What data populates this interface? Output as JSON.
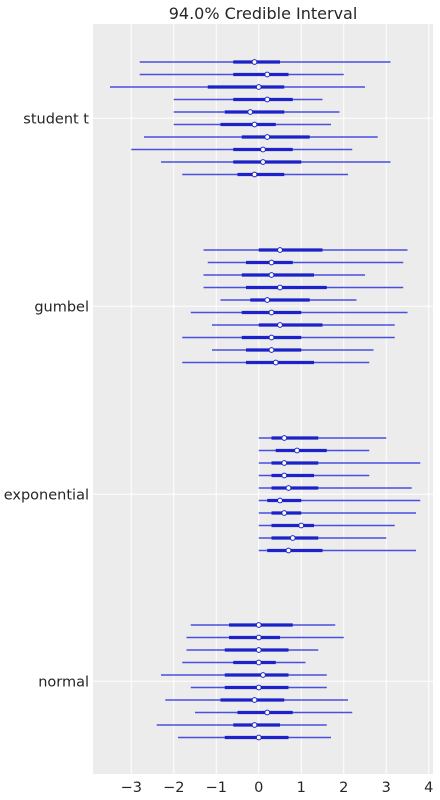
{
  "chart_data": {
    "type": "forest",
    "title": "94.0% Credible Interval",
    "xticks": [
      -3,
      -2,
      -1,
      0,
      1,
      2,
      3,
      4
    ],
    "xtick_labels": [
      "−3",
      "−2",
      "−1",
      "0",
      "1",
      "2",
      "3",
      "4"
    ],
    "xlim": [
      -3.9,
      4.1
    ],
    "grid": true,
    "line_color": "#4a4fe0",
    "thick_color": "#1b22c8",
    "background": "#ececec",
    "groups": [
      {
        "name": "student t",
        "intervals": [
          {
            "low": -2.8,
            "q25": -0.6,
            "median": -0.1,
            "q75": 0.5,
            "high": 3.1
          },
          {
            "low": -2.8,
            "q25": -0.6,
            "median": 0.2,
            "q75": 0.7,
            "high": 2.0
          },
          {
            "low": -3.5,
            "q25": -1.2,
            "median": 0.0,
            "q75": 0.6,
            "high": 2.5
          },
          {
            "low": -2.0,
            "q25": -0.6,
            "median": 0.2,
            "q75": 0.8,
            "high": 1.5
          },
          {
            "low": -2.0,
            "q25": -0.8,
            "median": -0.2,
            "q75": 0.6,
            "high": 1.9
          },
          {
            "low": -2.0,
            "q25": -0.9,
            "median": -0.1,
            "q75": 0.4,
            "high": 1.7
          },
          {
            "low": -2.7,
            "q25": -0.4,
            "median": 0.2,
            "q75": 1.2,
            "high": 2.8
          },
          {
            "low": -3.0,
            "q25": -0.6,
            "median": 0.1,
            "q75": 0.8,
            "high": 2.2
          },
          {
            "low": -2.3,
            "q25": -0.6,
            "median": 0.1,
            "q75": 1.0,
            "high": 3.1
          },
          {
            "low": -1.8,
            "q25": -0.5,
            "median": -0.1,
            "q75": 0.6,
            "high": 2.1
          }
        ]
      },
      {
        "name": "gumbel",
        "intervals": [
          {
            "low": -1.3,
            "q25": 0.0,
            "median": 0.5,
            "q75": 1.5,
            "high": 3.5
          },
          {
            "low": -1.2,
            "q25": -0.3,
            "median": 0.3,
            "q75": 0.8,
            "high": 3.4
          },
          {
            "low": -1.3,
            "q25": -0.4,
            "median": 0.3,
            "q75": 1.3,
            "high": 2.5
          },
          {
            "low": -1.3,
            "q25": -0.3,
            "median": 0.5,
            "q75": 1.6,
            "high": 3.4
          },
          {
            "low": -0.9,
            "q25": -0.2,
            "median": 0.2,
            "q75": 1.2,
            "high": 2.3
          },
          {
            "low": -1.6,
            "q25": -0.4,
            "median": 0.3,
            "q75": 1.0,
            "high": 3.5
          },
          {
            "low": -1.1,
            "q25": 0.0,
            "median": 0.5,
            "q75": 1.5,
            "high": 3.2
          },
          {
            "low": -1.8,
            "q25": -0.4,
            "median": 0.3,
            "q75": 1.0,
            "high": 3.2
          },
          {
            "low": -1.1,
            "q25": -0.3,
            "median": 0.3,
            "q75": 1.0,
            "high": 2.7
          },
          {
            "low": -1.8,
            "q25": -0.3,
            "median": 0.4,
            "q75": 1.3,
            "high": 2.6
          }
        ]
      },
      {
        "name": "exponential",
        "intervals": [
          {
            "low": 0.0,
            "q25": 0.3,
            "median": 0.6,
            "q75": 1.4,
            "high": 3.0
          },
          {
            "low": 0.0,
            "q25": 0.4,
            "median": 0.9,
            "q75": 1.6,
            "high": 2.6
          },
          {
            "low": 0.0,
            "q25": 0.3,
            "median": 0.6,
            "q75": 1.4,
            "high": 3.8
          },
          {
            "low": 0.0,
            "q25": 0.3,
            "median": 0.6,
            "q75": 1.3,
            "high": 2.6
          },
          {
            "low": 0.0,
            "q25": 0.3,
            "median": 0.7,
            "q75": 1.4,
            "high": 3.6
          },
          {
            "low": 0.0,
            "q25": 0.2,
            "median": 0.5,
            "q75": 1.0,
            "high": 3.8
          },
          {
            "low": 0.0,
            "q25": 0.3,
            "median": 0.6,
            "q75": 1.0,
            "high": 3.7
          },
          {
            "low": 0.0,
            "q25": 0.3,
            "median": 1.0,
            "q75": 1.3,
            "high": 3.2
          },
          {
            "low": 0.0,
            "q25": 0.3,
            "median": 0.8,
            "q75": 1.4,
            "high": 3.0
          },
          {
            "low": 0.0,
            "q25": 0.2,
            "median": 0.7,
            "q75": 1.5,
            "high": 3.7
          }
        ]
      },
      {
        "name": "normal",
        "intervals": [
          {
            "low": -1.6,
            "q25": -0.7,
            "median": 0.0,
            "q75": 0.8,
            "high": 1.8
          },
          {
            "low": -1.7,
            "q25": -0.7,
            "median": 0.0,
            "q75": 0.5,
            "high": 2.0
          },
          {
            "low": -1.7,
            "q25": -0.8,
            "median": 0.0,
            "q75": 0.7,
            "high": 1.4
          },
          {
            "low": -1.8,
            "q25": -0.6,
            "median": 0.0,
            "q75": 0.4,
            "high": 1.1
          },
          {
            "low": -2.3,
            "q25": -0.8,
            "median": 0.1,
            "q75": 0.7,
            "high": 1.6
          },
          {
            "low": -1.6,
            "q25": -0.8,
            "median": 0.0,
            "q75": 0.7,
            "high": 1.6
          },
          {
            "low": -2.2,
            "q25": -0.9,
            "median": -0.1,
            "q75": 0.6,
            "high": 2.1
          },
          {
            "low": -1.5,
            "q25": -0.5,
            "median": 0.2,
            "q75": 0.8,
            "high": 2.2
          },
          {
            "low": -2.4,
            "q25": -0.6,
            "median": -0.1,
            "q75": 0.5,
            "high": 1.6
          },
          {
            "low": -1.9,
            "q25": -0.8,
            "median": 0.0,
            "q75": 0.7,
            "high": 1.7
          }
        ]
      }
    ]
  }
}
